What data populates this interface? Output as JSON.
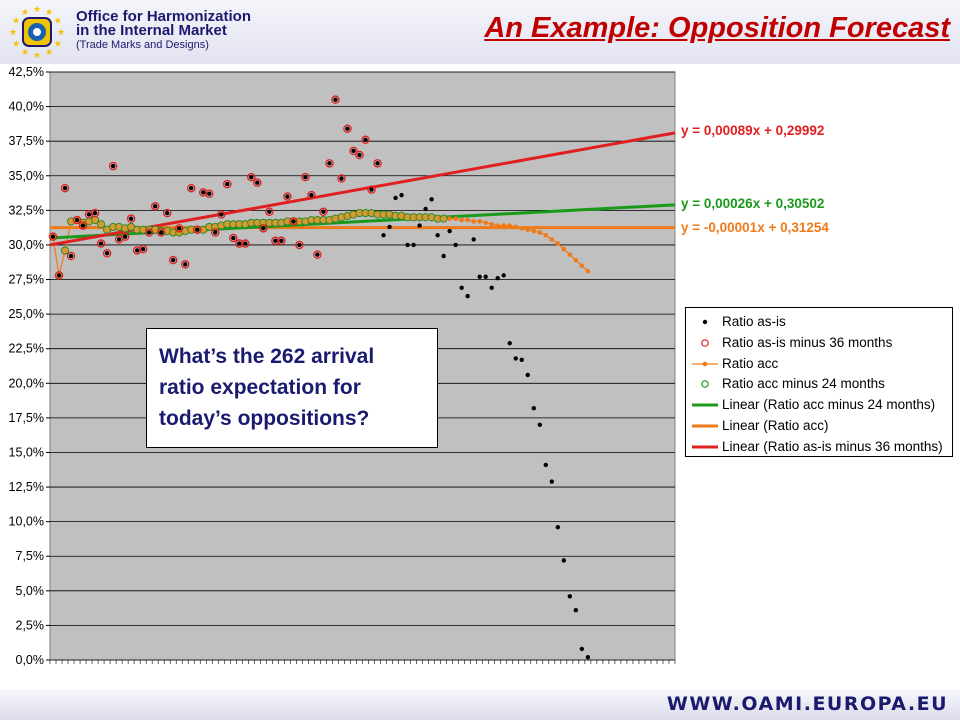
{
  "header": {
    "org_line1": "Office for Harmonization",
    "org_line2": "in the Internal Market",
    "org_line3": "(Trade Marks and Designs)",
    "slide_title": "An Example: Opposition Forecast"
  },
  "callout": {
    "line1": "What’s the 262 arrival",
    "line2": "ratio expectation for",
    "line3": "today’s oppositions?"
  },
  "footer": {
    "url": "WWW.OAMI.EUROPA.EU"
  },
  "colors": {
    "plot_bg": "#c0c0c0",
    "red": "#e02020",
    "green": "#1a9a1a",
    "orange": "#f07a18",
    "black": "#000000",
    "title": "#c00000",
    "navy": "#1a1a6e"
  },
  "icons": {
    "logo": "eu-stars-logo"
  },
  "chart_data": {
    "type": "scatter",
    "title": "",
    "xlabel": "",
    "ylabel": "",
    "ylim": [
      0,
      0.425
    ],
    "yticks": [
      "0,0%",
      "2,5%",
      "5,0%",
      "7,5%",
      "10,0%",
      "12,5%",
      "15,0%",
      "17,5%",
      "20,0%",
      "22,5%",
      "25,0%",
      "27,5%",
      "30,0%",
      "32,5%",
      "35,0%",
      "37,5%",
      "40,0%",
      "42,5%"
    ],
    "x_count": 104,
    "grid": "horizontal",
    "legend_position": "right",
    "equations": {
      "red": "y = 0,00089x + 0,29992",
      "green": "y = 0,00026x + 0,30502",
      "orange": "y = -0,00001x + 0,31254"
    },
    "series": [
      {
        "name": "Ratio as-is",
        "marker": "dot",
        "color": "#000000",
        "values": [
          0.306,
          0.278,
          0.341,
          0.292,
          0.318,
          0.314,
          0.322,
          0.323,
          0.301,
          0.294,
          0.357,
          0.304,
          0.306,
          0.319,
          0.296,
          0.297,
          0.309,
          0.328,
          0.309,
          0.323,
          0.289,
          0.312,
          0.286,
          0.341,
          0.311,
          0.338,
          0.337,
          0.309,
          0.322,
          0.344,
          0.305,
          0.301,
          0.301,
          0.349,
          0.345,
          0.312,
          0.324,
          0.303,
          0.303,
          0.335,
          0.317,
          0.3,
          0.349,
          0.336,
          0.293,
          0.324,
          0.359,
          0.405,
          0.348,
          0.384,
          0.368,
          0.365,
          0.376,
          0.34,
          0.359,
          0.307,
          0.313,
          0.334,
          0.336,
          0.3,
          0.3,
          0.314,
          0.326,
          0.333,
          0.307,
          0.292,
          0.31,
          0.3,
          0.269,
          0.263,
          0.304,
          0.277,
          0.277,
          0.269,
          0.276,
          0.278,
          0.229,
          0.218,
          0.217,
          0.206,
          0.182,
          0.17,
          0.141,
          0.129,
          0.096,
          0.072,
          0.046,
          0.036,
          0.008,
          0.002
        ]
      },
      {
        "name": "Ratio as-is minus 36 months",
        "marker": "open-circle",
        "color": "#e02020",
        "values": [
          0.306,
          0.278,
          0.341,
          0.292,
          0.318,
          0.314,
          0.322,
          0.323,
          0.301,
          0.294,
          0.357,
          0.304,
          0.306,
          0.319,
          0.296,
          0.297,
          0.309,
          0.328,
          0.309,
          0.323,
          0.289,
          0.312,
          0.286,
          0.341,
          0.311,
          0.338,
          0.337,
          0.309,
          0.322,
          0.344,
          0.305,
          0.301,
          0.301,
          0.349,
          0.345,
          0.312,
          0.324,
          0.303,
          0.303,
          0.335,
          0.317,
          0.3,
          0.349,
          0.336,
          0.293,
          0.324,
          0.359,
          0.405,
          0.348,
          0.384,
          0.368,
          0.365,
          0.376,
          0.34,
          0.359
        ]
      },
      {
        "name": "Ratio acc",
        "marker": "dot-line",
        "color": "#f07a18",
        "values": [
          0.306,
          0.278,
          0.296,
          0.317,
          0.318,
          0.316,
          0.317,
          0.318,
          0.315,
          0.311,
          0.313,
          0.313,
          0.312,
          0.313,
          0.311,
          0.311,
          0.311,
          0.311,
          0.31,
          0.31,
          0.309,
          0.309,
          0.31,
          0.311,
          0.311,
          0.311,
          0.313,
          0.313,
          0.314,
          0.315,
          0.315,
          0.315,
          0.315,
          0.316,
          0.316,
          0.316,
          0.316,
          0.316,
          0.316,
          0.317,
          0.317,
          0.317,
          0.317,
          0.318,
          0.318,
          0.318,
          0.318,
          0.319,
          0.32,
          0.321,
          0.322,
          0.323,
          0.323,
          0.323,
          0.322,
          0.322,
          0.322,
          0.321,
          0.321,
          0.32,
          0.32,
          0.32,
          0.32,
          0.32,
          0.319,
          0.319,
          0.319,
          0.319,
          0.318,
          0.318,
          0.317,
          0.317,
          0.316,
          0.315,
          0.314,
          0.314,
          0.314,
          0.313,
          0.312,
          0.311,
          0.31,
          0.309,
          0.307,
          0.304,
          0.301,
          0.297,
          0.293,
          0.289,
          0.285,
          0.281
        ]
      },
      {
        "name": "Ratio acc minus 24 months",
        "marker": "open-circle",
        "color": "#1a9a1a",
        "values": [
          0.306,
          0.278,
          0.296,
          0.317,
          0.318,
          0.316,
          0.317,
          0.318,
          0.315,
          0.311,
          0.313,
          0.313,
          0.312,
          0.313,
          0.311,
          0.311,
          0.311,
          0.311,
          0.31,
          0.31,
          0.309,
          0.309,
          0.31,
          0.311,
          0.311,
          0.311,
          0.313,
          0.313,
          0.314,
          0.315,
          0.315,
          0.315,
          0.315,
          0.316,
          0.316,
          0.316,
          0.316,
          0.316,
          0.316,
          0.317,
          0.317,
          0.317,
          0.317,
          0.318,
          0.318,
          0.318,
          0.318,
          0.319,
          0.32,
          0.321,
          0.322,
          0.323,
          0.323,
          0.323,
          0.322,
          0.322,
          0.322,
          0.321,
          0.321,
          0.32,
          0.32,
          0.32,
          0.32,
          0.32,
          0.319,
          0.319
        ]
      },
      {
        "name": "Linear (Ratio acc minus 24 months)",
        "marker": "line",
        "color": "#1a9a1a",
        "y_start": 0.305,
        "y_end": 0.329
      },
      {
        "name": "Linear (Ratio acc)",
        "marker": "line",
        "color": "#f07a18",
        "y_start": 0.3125,
        "y_end": 0.3125
      },
      {
        "name": "Linear (Ratio as-is minus 36 months)",
        "marker": "line",
        "color": "#e02020",
        "y_start": 0.3,
        "y_end": 0.381
      }
    ]
  }
}
